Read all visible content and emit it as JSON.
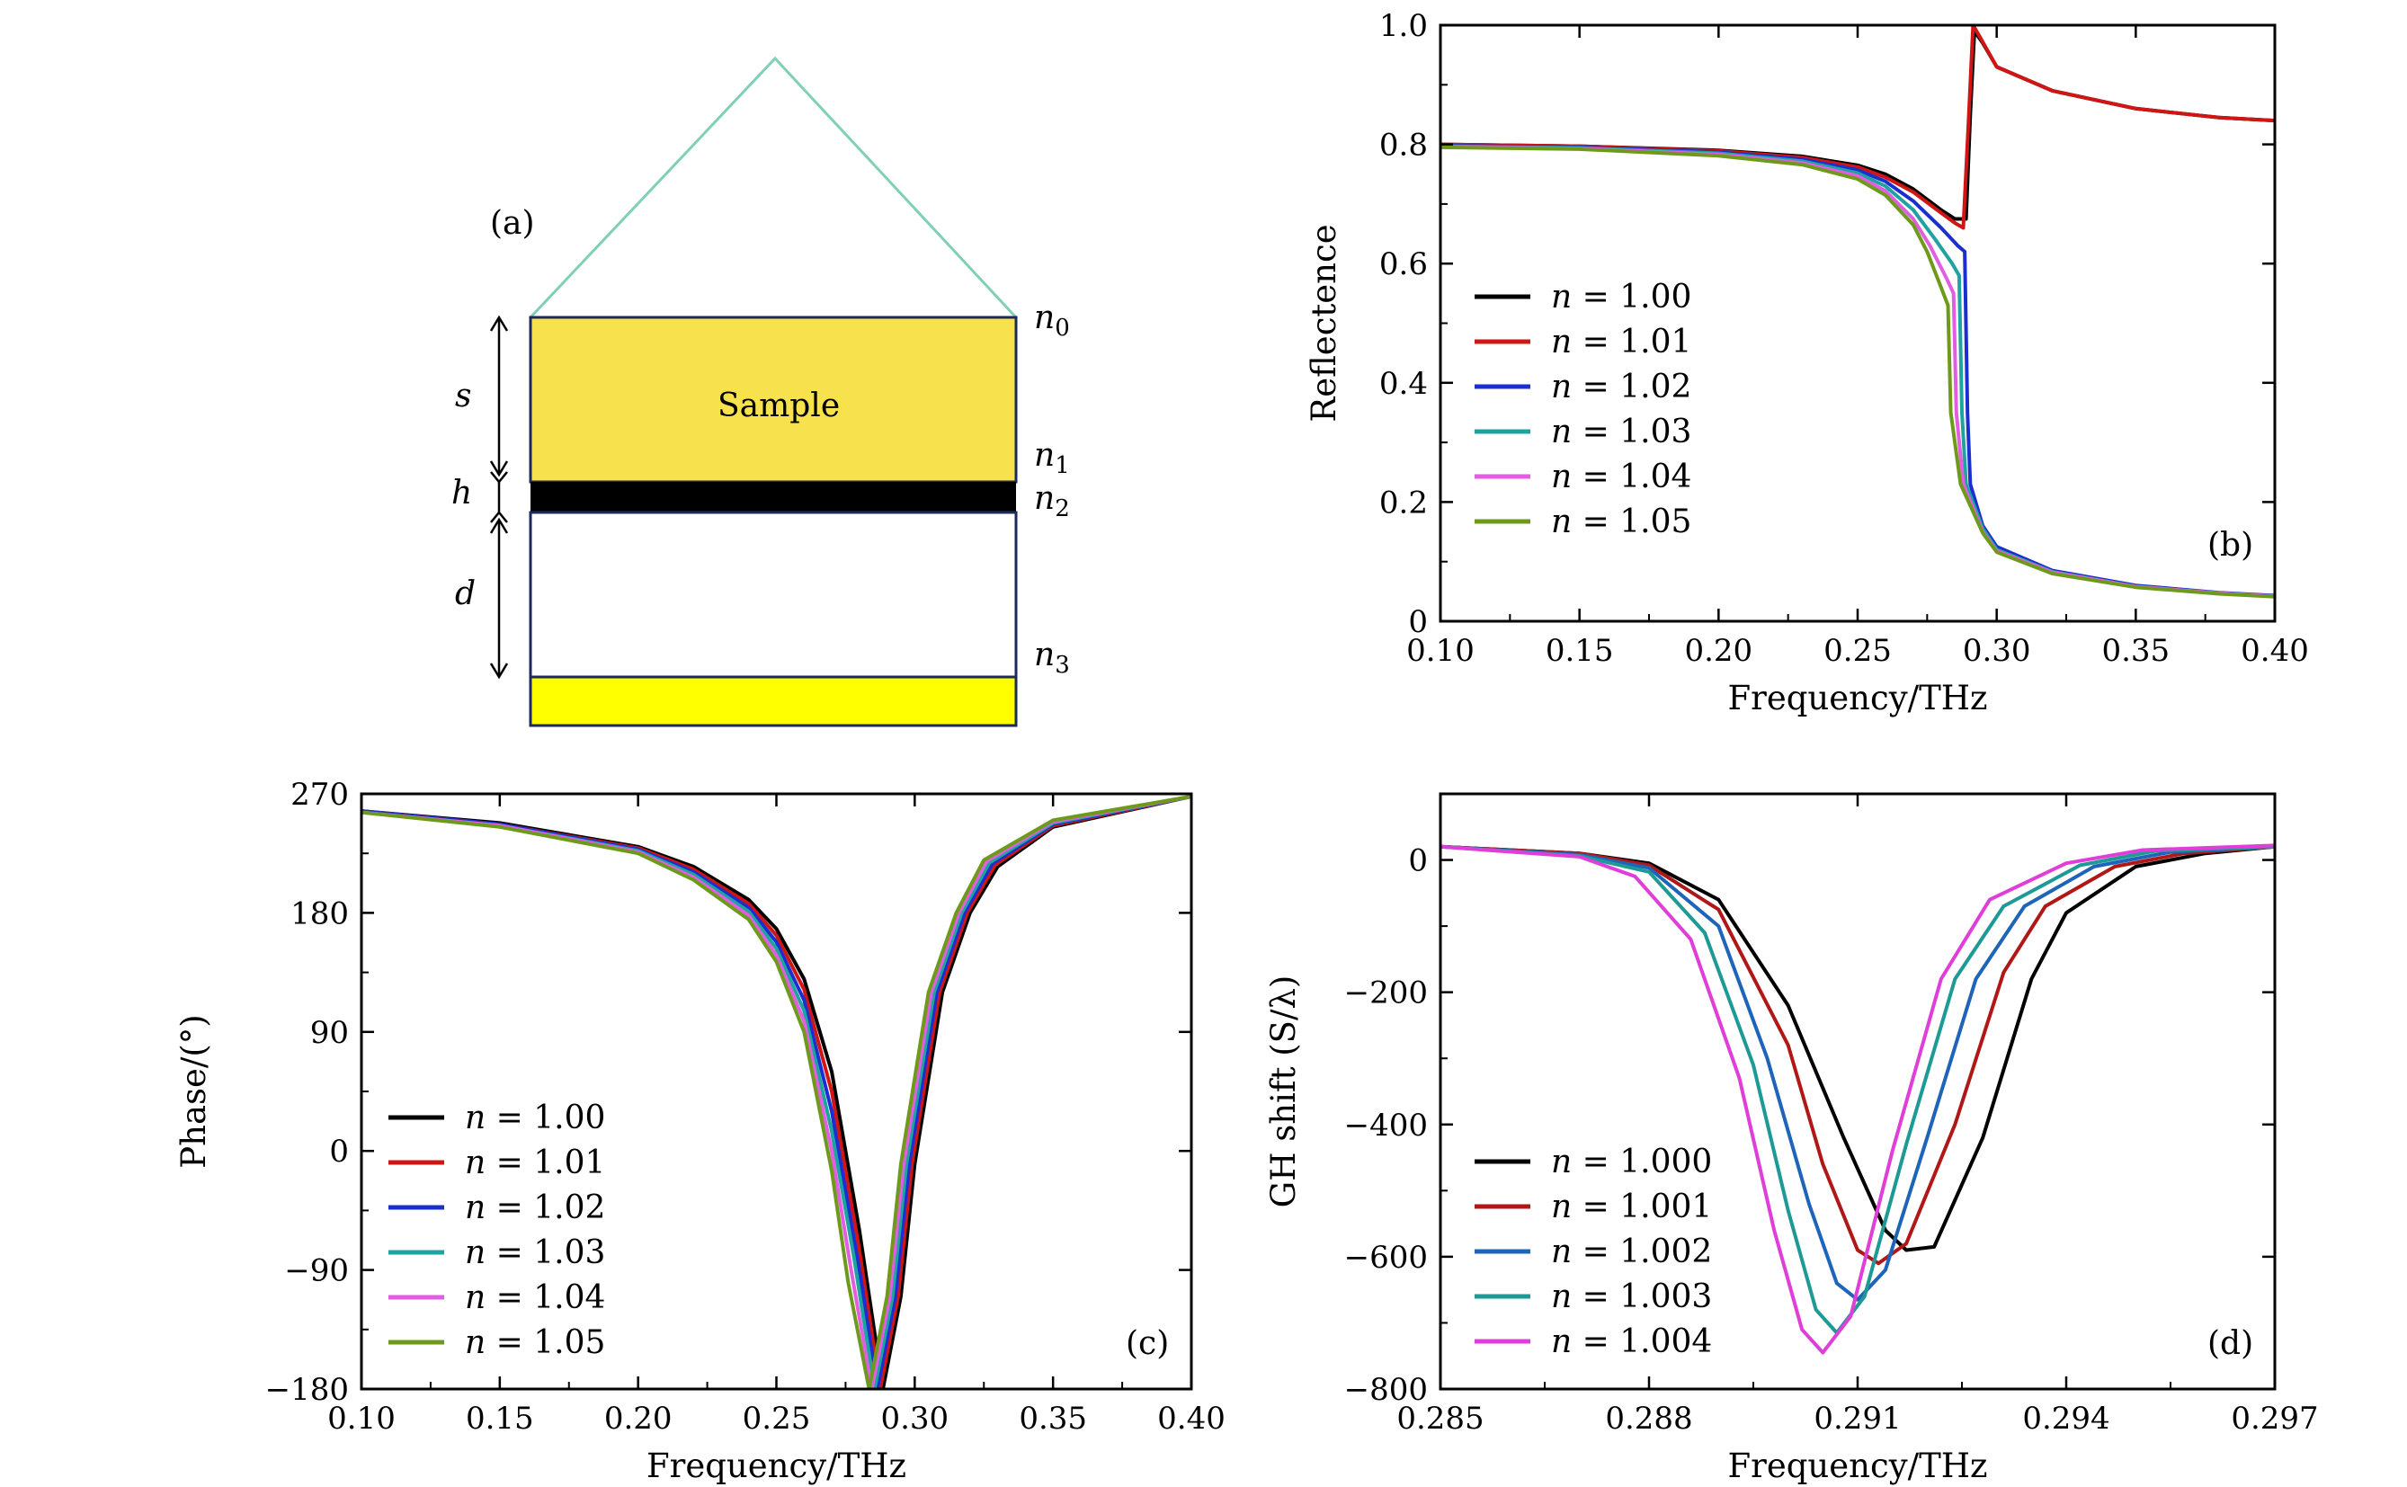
{
  "diagram": {
    "label": "(a)",
    "sample_label": "Sample",
    "dimension_labels": [
      "s",
      "h",
      "d"
    ],
    "index_labels": [
      "n0",
      "n1",
      "n2",
      "n3"
    ],
    "colors": {
      "prism": "#7fd0b6",
      "sample": "#f7e14c",
      "layer": "#000000",
      "substrate": "#ffff00",
      "border": "#1b2a5a"
    }
  },
  "chart_data": [
    {
      "id": "b",
      "type": "line",
      "panel_label": "(b)",
      "title": "",
      "xlabel": "Frequency/THz",
      "ylabel": "Reflectence",
      "xlim": [
        0.1,
        0.4
      ],
      "ylim": [
        0,
        1.0
      ],
      "xticks": [
        0.1,
        0.15,
        0.2,
        0.25,
        0.3,
        0.35,
        0.4
      ],
      "xtick_labels": [
        "0.10",
        "0.15",
        "0.20",
        "0.25",
        "0.30",
        "0.35",
        "0.40"
      ],
      "yticks": [
        0,
        0.2,
        0.4,
        0.6,
        0.8,
        1.0
      ],
      "ytick_labels": [
        "0",
        "0.2",
        "0.4",
        "0.6",
        "0.8",
        "1.0"
      ],
      "legend_loc": "center-left",
      "series": [
        {
          "name": "n = 1.00",
          "n_label": "n",
          "value_label": "= 1.00",
          "color": "#000000",
          "x": [
            0.1,
            0.15,
            0.2,
            0.23,
            0.25,
            0.26,
            0.27,
            0.28,
            0.285,
            0.289,
            0.2905,
            0.292,
            0.295,
            0.3,
            0.32,
            0.35,
            0.38,
            0.4
          ],
          "y": [
            0.8,
            0.797,
            0.79,
            0.78,
            0.765,
            0.75,
            0.725,
            0.69,
            0.675,
            0.675,
            0.85,
            0.99,
            0.97,
            0.93,
            0.89,
            0.86,
            0.845,
            0.84
          ]
        },
        {
          "name": "n = 1.01",
          "n_label": "n",
          "value_label": "= 1.01",
          "color": "#d01515",
          "x": [
            0.1,
            0.15,
            0.2,
            0.23,
            0.25,
            0.26,
            0.27,
            0.28,
            0.285,
            0.288,
            0.29,
            0.2915,
            0.294,
            0.3,
            0.32,
            0.35,
            0.38,
            0.4
          ],
          "y": [
            0.8,
            0.797,
            0.789,
            0.778,
            0.762,
            0.745,
            0.72,
            0.685,
            0.668,
            0.66,
            0.85,
            1.0,
            0.98,
            0.93,
            0.89,
            0.86,
            0.845,
            0.84
          ]
        },
        {
          "name": "n = 1.02",
          "n_label": "n",
          "value_label": "= 1.02",
          "color": "#1b2fd0",
          "x": [
            0.1,
            0.15,
            0.2,
            0.23,
            0.25,
            0.26,
            0.27,
            0.28,
            0.286,
            0.2885,
            0.2895,
            0.2905,
            0.295,
            0.3,
            0.32,
            0.35,
            0.38,
            0.4
          ],
          "y": [
            0.798,
            0.795,
            0.787,
            0.775,
            0.757,
            0.738,
            0.705,
            0.66,
            0.63,
            0.62,
            0.35,
            0.23,
            0.16,
            0.125,
            0.085,
            0.06,
            0.048,
            0.043
          ]
        },
        {
          "name": "n = 1.03",
          "n_label": "n",
          "value_label": "= 1.03",
          "color": "#1ea3a0",
          "x": [
            0.1,
            0.15,
            0.2,
            0.23,
            0.25,
            0.26,
            0.27,
            0.278,
            0.284,
            0.2865,
            0.2875,
            0.289,
            0.295,
            0.3,
            0.32,
            0.35,
            0.38,
            0.4
          ],
          "y": [
            0.797,
            0.794,
            0.785,
            0.772,
            0.752,
            0.73,
            0.69,
            0.64,
            0.6,
            0.58,
            0.35,
            0.23,
            0.155,
            0.12,
            0.083,
            0.058,
            0.047,
            0.042
          ]
        },
        {
          "name": "n = 1.04",
          "n_label": "n",
          "value_label": "= 1.04",
          "color": "#e25ee0",
          "x": [
            0.1,
            0.15,
            0.2,
            0.23,
            0.25,
            0.26,
            0.27,
            0.276,
            0.282,
            0.2845,
            0.2855,
            0.288,
            0.295,
            0.3,
            0.32,
            0.35,
            0.38,
            0.4
          ],
          "y": [
            0.796,
            0.793,
            0.783,
            0.769,
            0.747,
            0.722,
            0.675,
            0.63,
            0.575,
            0.55,
            0.35,
            0.23,
            0.15,
            0.118,
            0.082,
            0.058,
            0.047,
            0.042
          ]
        },
        {
          "name": "n = 1.05",
          "n_label": "n",
          "value_label": "= 1.05",
          "color": "#6e9a1c",
          "x": [
            0.1,
            0.15,
            0.2,
            0.23,
            0.25,
            0.26,
            0.27,
            0.275,
            0.28,
            0.2825,
            0.2835,
            0.287,
            0.295,
            0.3,
            0.32,
            0.35,
            0.38,
            0.4
          ],
          "y": [
            0.795,
            0.792,
            0.781,
            0.766,
            0.742,
            0.715,
            0.665,
            0.62,
            0.56,
            0.53,
            0.35,
            0.23,
            0.148,
            0.116,
            0.08,
            0.057,
            0.046,
            0.041
          ]
        }
      ]
    },
    {
      "id": "c",
      "type": "line",
      "panel_label": "(c)",
      "title": "",
      "xlabel": "Frequency/THz",
      "ylabel": "Phase/(°)",
      "xlim": [
        0.1,
        0.4
      ],
      "ylim": [
        -180,
        270
      ],
      "xticks": [
        0.1,
        0.15,
        0.2,
        0.25,
        0.3,
        0.35,
        0.4
      ],
      "xtick_labels": [
        "0.10",
        "0.15",
        "0.20",
        "0.25",
        "0.30",
        "0.35",
        "0.40"
      ],
      "yticks": [
        -180,
        -90,
        0,
        90,
        180,
        270
      ],
      "ytick_labels": [
        "−180",
        "−90",
        "0",
        "90",
        "180",
        "270"
      ],
      "legend_loc": "lower-left",
      "series": [
        {
          "name": "n = 1.00",
          "n_label": "n",
          "value_label": "= 1.00",
          "color": "#000000",
          "x": [
            0.1,
            0.15,
            0.2,
            0.22,
            0.24,
            0.25,
            0.26,
            0.27,
            0.28,
            0.2885,
            0.295,
            0.3,
            0.31,
            0.32,
            0.33,
            0.35,
            0.4
          ],
          "y": [
            257,
            248,
            230,
            215,
            190,
            168,
            130,
            60,
            -60,
            -180,
            -110,
            -10,
            120,
            180,
            215,
            245,
            268
          ]
        },
        {
          "name": "n = 1.01",
          "n_label": "n",
          "value_label": "= 1.01",
          "color": "#d01515",
          "x": [
            0.1,
            0.15,
            0.2,
            0.22,
            0.24,
            0.25,
            0.26,
            0.27,
            0.28,
            0.2875,
            0.294,
            0.299,
            0.309,
            0.319,
            0.329,
            0.35,
            0.4
          ],
          "y": [
            257,
            247,
            229,
            213,
            187,
            163,
            122,
            45,
            -75,
            -180,
            -110,
            -10,
            120,
            180,
            216,
            246,
            268
          ]
        },
        {
          "name": "n = 1.02",
          "n_label": "n",
          "value_label": "= 1.02",
          "color": "#1b2fd0",
          "x": [
            0.1,
            0.15,
            0.2,
            0.22,
            0.24,
            0.25,
            0.26,
            0.27,
            0.28,
            0.2865,
            0.293,
            0.298,
            0.308,
            0.318,
            0.328,
            0.35,
            0.4
          ],
          "y": [
            257,
            247,
            228,
            211,
            184,
            158,
            114,
            30,
            -90,
            -180,
            -110,
            -10,
            120,
            180,
            217,
            247,
            268
          ]
        },
        {
          "name": "n = 1.03",
          "n_label": "n",
          "value_label": "= 1.03",
          "color": "#1ea3a0",
          "x": [
            0.1,
            0.15,
            0.2,
            0.22,
            0.24,
            0.25,
            0.26,
            0.27,
            0.278,
            0.2855,
            0.292,
            0.297,
            0.307,
            0.317,
            0.327,
            0.35,
            0.4
          ],
          "y": [
            256,
            246,
            227,
            209,
            181,
            153,
            106,
            15,
            -80,
            -180,
            -110,
            -10,
            120,
            180,
            218,
            248,
            268
          ]
        },
        {
          "name": "n = 1.04",
          "n_label": "n",
          "value_label": "= 1.04",
          "color": "#e25ee0",
          "x": [
            0.1,
            0.15,
            0.2,
            0.22,
            0.24,
            0.25,
            0.26,
            0.27,
            0.277,
            0.2845,
            0.291,
            0.296,
            0.306,
            0.316,
            0.326,
            0.35,
            0.4
          ],
          "y": [
            256,
            246,
            226,
            207,
            178,
            148,
            98,
            0,
            -90,
            -180,
            -110,
            -10,
            120,
            180,
            219,
            249,
            268
          ]
        },
        {
          "name": "n = 1.05",
          "n_label": "n",
          "value_label": "= 1.05",
          "color": "#6e9a1c",
          "x": [
            0.1,
            0.15,
            0.2,
            0.22,
            0.24,
            0.25,
            0.26,
            0.27,
            0.276,
            0.2835,
            0.29,
            0.295,
            0.305,
            0.315,
            0.325,
            0.35,
            0.4
          ],
          "y": [
            256,
            245,
            225,
            205,
            175,
            143,
            90,
            -15,
            -100,
            -180,
            -110,
            -10,
            120,
            180,
            220,
            250,
            268
          ]
        }
      ]
    },
    {
      "id": "d",
      "type": "line",
      "panel_label": "(d)",
      "title": "",
      "xlabel": "Frequency/THz",
      "ylabel": "GH shift (S/λ)",
      "xlim": [
        0.285,
        0.297
      ],
      "ylim": [
        -800,
        100
      ],
      "xticks": [
        0.285,
        0.288,
        0.291,
        0.294,
        0.297
      ],
      "xtick_labels": [
        "0.285",
        "0.288",
        "0.291",
        "0.294",
        "0.297"
      ],
      "yticks": [
        -800,
        -600,
        -400,
        -200,
        0
      ],
      "ytick_labels": [
        "−800",
        "−600",
        "−400",
        "−200",
        "0"
      ],
      "legend_loc": "lower-left",
      "series": [
        {
          "name": "n = 1.000",
          "n_label": "n",
          "value_label": "= 1.000",
          "color": "#000000",
          "x": [
            0.285,
            0.287,
            0.288,
            0.289,
            0.29,
            0.2908,
            0.2914,
            0.2917,
            0.2921,
            0.2928,
            0.2935,
            0.294,
            0.295,
            0.296,
            0.297
          ],
          "y": [
            20,
            10,
            -5,
            -60,
            -220,
            -420,
            -560,
            -590,
            -585,
            -420,
            -180,
            -80,
            -10,
            10,
            20
          ]
        },
        {
          "name": "n = 1.001",
          "n_label": "n",
          "value_label": "= 1.001",
          "color": "#b01818",
          "x": [
            0.285,
            0.287,
            0.288,
            0.289,
            0.29,
            0.2905,
            0.291,
            0.2913,
            0.2917,
            0.2924,
            0.2931,
            0.2937,
            0.2947,
            0.2957,
            0.297
          ],
          "y": [
            20,
            10,
            -8,
            -75,
            -280,
            -460,
            -590,
            -610,
            -580,
            -400,
            -170,
            -70,
            -10,
            10,
            20
          ]
        },
        {
          "name": "n = 1.002",
          "n_label": "n",
          "value_label": "= 1.002",
          "color": "#1e64b8",
          "x": [
            0.285,
            0.287,
            0.288,
            0.289,
            0.2897,
            0.2903,
            0.2907,
            0.291,
            0.2914,
            0.292,
            0.2927,
            0.2934,
            0.2944,
            0.2955,
            0.297
          ],
          "y": [
            20,
            8,
            -12,
            -100,
            -300,
            -520,
            -640,
            -665,
            -620,
            -420,
            -180,
            -70,
            -10,
            12,
            20
          ]
        },
        {
          "name": "n = 1.003",
          "n_label": "n",
          "value_label": "= 1.003",
          "color": "#1e9a96",
          "x": [
            0.285,
            0.287,
            0.288,
            0.2888,
            0.2895,
            0.29,
            0.2904,
            0.2907,
            0.2911,
            0.2917,
            0.2924,
            0.2931,
            0.2942,
            0.2953,
            0.297
          ],
          "y": [
            20,
            6,
            -18,
            -110,
            -310,
            -530,
            -680,
            -715,
            -660,
            -430,
            -180,
            -70,
            -8,
            14,
            20
          ]
        },
        {
          "name": "n = 1.004",
          "n_label": "n",
          "value_label": "= 1.004",
          "color": "#e03ed8",
          "x": [
            0.285,
            0.287,
            0.2878,
            0.2886,
            0.2893,
            0.2898,
            0.2902,
            0.2905,
            0.2909,
            0.2915,
            0.2922,
            0.2929,
            0.294,
            0.2951,
            0.297
          ],
          "y": [
            20,
            5,
            -25,
            -120,
            -330,
            -560,
            -710,
            -745,
            -690,
            -440,
            -180,
            -60,
            -5,
            15,
            22
          ]
        }
      ]
    }
  ]
}
